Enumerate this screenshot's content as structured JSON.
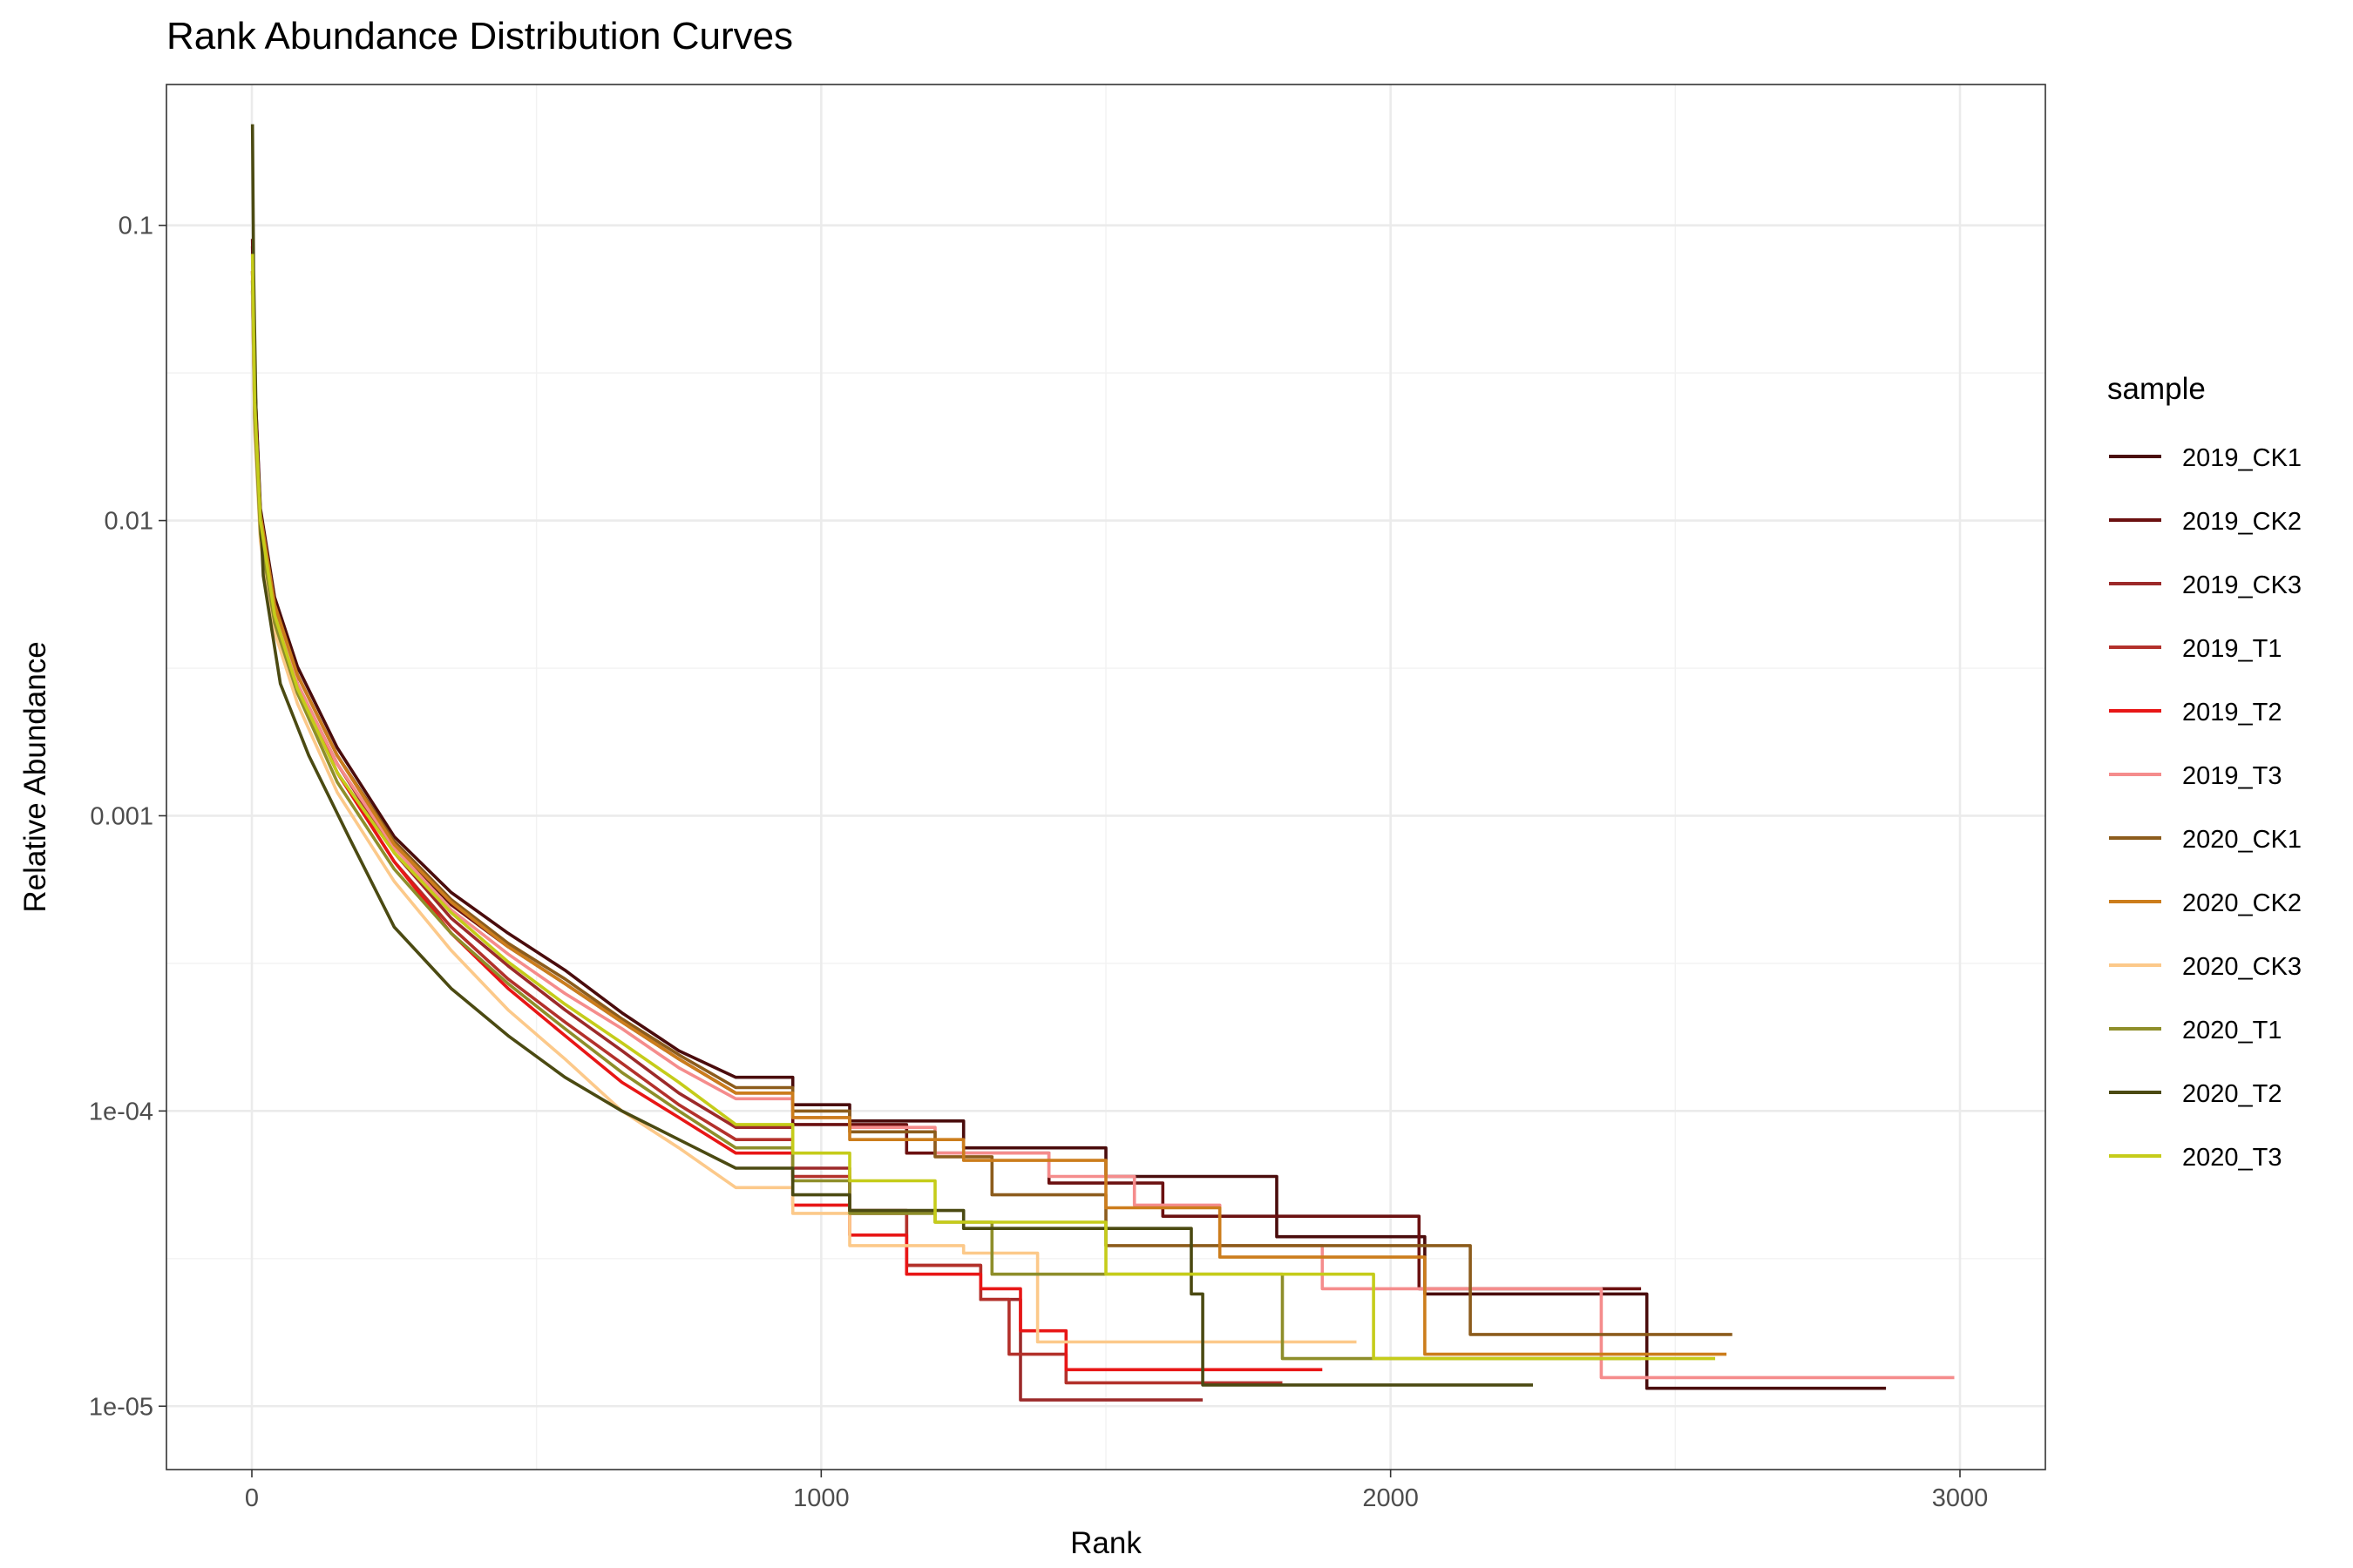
{
  "chart_data": {
    "type": "line",
    "title": "Rank Abundance Distribution Curves",
    "xlabel": "Rank",
    "ylabel": "Relative Abundance",
    "xlim": [
      -150,
      3150
    ],
    "ylim": [
      6.1e-06,
      0.3
    ],
    "x_scale": "linear",
    "y_scale": "log10",
    "x_ticks": [
      0,
      1000,
      2000,
      3000
    ],
    "x_tick_labels": [
      "0",
      "1000",
      "2000",
      "3000"
    ],
    "y_ticks": [
      1e-05,
      0.0001,
      0.001,
      0.01,
      0.1
    ],
    "y_tick_labels": [
      "1e-05",
      "1e-04",
      "0.001",
      "0.01",
      "0.1"
    ],
    "grid": true,
    "legend": {
      "title": "sample",
      "position": "right"
    },
    "series": [
      {
        "name": "2019_CK1",
        "color": "#4a0c0c",
        "points": [
          [
            1,
            0.085
          ],
          [
            5,
            0.03
          ],
          [
            15,
            0.011
          ],
          [
            40,
            0.0055
          ],
          [
            80,
            0.0032
          ],
          [
            150,
            0.0017
          ],
          [
            250,
            0.00085
          ],
          [
            350,
            0.00055
          ],
          [
            450,
            0.0004
          ],
          [
            550,
            0.0003
          ],
          [
            650,
            0.000215
          ],
          [
            750,
            0.00016
          ],
          [
            850,
            0.00013
          ],
          [
            950,
            0.000105
          ],
          [
            1050,
            9.25e-05
          ],
          [
            1250,
            7.5e-05
          ],
          [
            1500,
            6e-05
          ],
          [
            1800,
            3.75e-05
          ],
          [
            2060,
            2.4e-05
          ],
          [
            2450,
            1.15e-05
          ],
          [
            2870,
            1.15e-05
          ]
        ]
      },
      {
        "name": "2019_CK2",
        "color": "#6b1010",
        "points": [
          [
            1,
            0.09
          ],
          [
            5,
            0.03
          ],
          [
            15,
            0.0105
          ],
          [
            40,
            0.0052
          ],
          [
            80,
            0.003
          ],
          [
            150,
            0.0016
          ],
          [
            250,
            0.0008
          ],
          [
            350,
            0.0005
          ],
          [
            450,
            0.00036
          ],
          [
            550,
            0.00027
          ],
          [
            650,
            0.0002
          ],
          [
            750,
            0.00015
          ],
          [
            850,
            0.000115
          ],
          [
            950,
            9e-05
          ],
          [
            1150,
            7.2e-05
          ],
          [
            1400,
            5.7e-05
          ],
          [
            1600,
            4.4e-05
          ],
          [
            1800,
            4.4e-05
          ],
          [
            2050,
            2.5e-05
          ],
          [
            2440,
            2.5e-05
          ]
        ]
      },
      {
        "name": "2019_CK3",
        "color": "#9c2a2a",
        "points": [
          [
            1,
            0.07
          ],
          [
            5,
            0.025
          ],
          [
            15,
            0.01
          ],
          [
            40,
            0.005
          ],
          [
            80,
            0.0028
          ],
          [
            150,
            0.0015
          ],
          [
            250,
            0.00075
          ],
          [
            350,
            0.00045
          ],
          [
            450,
            0.00031
          ],
          [
            550,
            0.00022
          ],
          [
            650,
            0.00016
          ],
          [
            750,
            0.000115
          ],
          [
            850,
            8.8e-05
          ],
          [
            950,
            6.4e-05
          ],
          [
            1050,
            4.6e-05
          ],
          [
            1150,
            3e-05
          ],
          [
            1280,
            2.3e-05
          ],
          [
            1350,
            1.05e-05
          ],
          [
            1670,
            1.05e-05
          ]
        ]
      },
      {
        "name": "2019_T1",
        "color": "#b3312b",
        "points": [
          [
            1,
            0.06
          ],
          [
            5,
            0.022
          ],
          [
            15,
            0.0095
          ],
          [
            40,
            0.0048
          ],
          [
            80,
            0.0027
          ],
          [
            150,
            0.0014
          ],
          [
            250,
            0.0007
          ],
          [
            350,
            0.00042
          ],
          [
            450,
            0.00028
          ],
          [
            550,
            0.0002
          ],
          [
            650,
            0.000145
          ],
          [
            750,
            0.000105
          ],
          [
            850,
            8e-05
          ],
          [
            950,
            6e-05
          ],
          [
            1050,
            4.5e-05
          ],
          [
            1150,
            3e-05
          ],
          [
            1280,
            2.3e-05
          ],
          [
            1330,
            1.5e-05
          ],
          [
            1430,
            1.2e-05
          ],
          [
            1810,
            1.2e-05
          ]
        ]
      },
      {
        "name": "2019_T2",
        "color": "#e81616",
        "points": [
          [
            1,
            0.065
          ],
          [
            5,
            0.022
          ],
          [
            15,
            0.0095
          ],
          [
            40,
            0.0048
          ],
          [
            80,
            0.0028
          ],
          [
            150,
            0.0014
          ],
          [
            250,
            0.0007
          ],
          [
            350,
            0.0004
          ],
          [
            450,
            0.00026
          ],
          [
            550,
            0.00018
          ],
          [
            650,
            0.000125
          ],
          [
            750,
            9.5e-05
          ],
          [
            850,
            7.2e-05
          ],
          [
            950,
            4.8e-05
          ],
          [
            1050,
            3.8e-05
          ],
          [
            1150,
            2.8e-05
          ],
          [
            1280,
            2.5e-05
          ],
          [
            1350,
            1.8e-05
          ],
          [
            1430,
            1.33e-05
          ],
          [
            1880,
            1.33e-05
          ]
        ]
      },
      {
        "name": "2019_T3",
        "color": "#f58c8c",
        "points": [
          [
            1,
            0.06
          ],
          [
            5,
            0.022
          ],
          [
            15,
            0.0095
          ],
          [
            40,
            0.0048
          ],
          [
            80,
            0.0028
          ],
          [
            150,
            0.0015
          ],
          [
            250,
            0.00078
          ],
          [
            350,
            0.00048
          ],
          [
            450,
            0.00034
          ],
          [
            550,
            0.00025
          ],
          [
            650,
            0.00019
          ],
          [
            750,
            0.00014
          ],
          [
            850,
            0.00011
          ],
          [
            950,
            9.5e-05
          ],
          [
            1050,
            8.8e-05
          ],
          [
            1200,
            7.2e-05
          ],
          [
            1400,
            6e-05
          ],
          [
            1550,
            4.8e-05
          ],
          [
            1700,
            3.5e-05
          ],
          [
            1880,
            2.5e-05
          ],
          [
            2370,
            1.25e-05
          ],
          [
            2990,
            1.25e-05
          ]
        ]
      },
      {
        "name": "2020_CK1",
        "color": "#8c5c1c",
        "points": [
          [
            1,
            0.07
          ],
          [
            5,
            0.025
          ],
          [
            15,
            0.0105
          ],
          [
            40,
            0.0052
          ],
          [
            80,
            0.003
          ],
          [
            150,
            0.0016
          ],
          [
            250,
            0.00082
          ],
          [
            350,
            0.00052
          ],
          [
            450,
            0.00037
          ],
          [
            550,
            0.00028
          ],
          [
            650,
            0.000205
          ],
          [
            750,
            0.000155
          ],
          [
            850,
            0.00012
          ],
          [
            950,
            0.0001
          ],
          [
            1050,
            8.5e-05
          ],
          [
            1200,
            7e-05
          ],
          [
            1300,
            5.2e-05
          ],
          [
            1500,
            3.5e-05
          ],
          [
            2130,
            3.5e-05
          ],
          [
            2140,
            1.75e-05
          ],
          [
            2600,
            1.75e-05
          ]
        ]
      },
      {
        "name": "2020_CK2",
        "color": "#cc7d1c",
        "points": [
          [
            1,
            0.07
          ],
          [
            5,
            0.025
          ],
          [
            15,
            0.0105
          ],
          [
            40,
            0.0052
          ],
          [
            80,
            0.003
          ],
          [
            150,
            0.0016
          ],
          [
            250,
            0.0008
          ],
          [
            350,
            0.00051
          ],
          [
            450,
            0.00036
          ],
          [
            550,
            0.00027
          ],
          [
            650,
            0.0002
          ],
          [
            750,
            0.00015
          ],
          [
            850,
            0.000115
          ],
          [
            950,
            9.5e-05
          ],
          [
            1050,
            8e-05
          ],
          [
            1250,
            6.8e-05
          ],
          [
            1500,
            4.7e-05
          ],
          [
            1700,
            3.2e-05
          ],
          [
            2050,
            3.2e-05
          ],
          [
            2060,
            1.5e-05
          ],
          [
            2590,
            1.5e-05
          ]
        ]
      },
      {
        "name": "2020_CK3",
        "color": "#fcc98a",
        "points": [
          [
            1,
            0.06
          ],
          [
            5,
            0.02
          ],
          [
            15,
            0.0085
          ],
          [
            40,
            0.0042
          ],
          [
            80,
            0.0024
          ],
          [
            150,
            0.0012
          ],
          [
            250,
            0.0006
          ],
          [
            350,
            0.00035
          ],
          [
            450,
            0.00022
          ],
          [
            550,
            0.00015
          ],
          [
            650,
            0.0001
          ],
          [
            750,
            7.5e-05
          ],
          [
            850,
            5.5e-05
          ],
          [
            950,
            4.5e-05
          ],
          [
            1050,
            3.5e-05
          ],
          [
            1250,
            3.3e-05
          ],
          [
            1380,
            1.65e-05
          ],
          [
            1940,
            1.65e-05
          ]
        ]
      },
      {
        "name": "2020_T1",
        "color": "#8e8e2a",
        "points": [
          [
            1,
            0.065
          ],
          [
            5,
            0.022
          ],
          [
            15,
            0.009
          ],
          [
            40,
            0.0045
          ],
          [
            80,
            0.0026
          ],
          [
            150,
            0.0013
          ],
          [
            250,
            0.00066
          ],
          [
            350,
            0.0004
          ],
          [
            450,
            0.00027
          ],
          [
            550,
            0.00019
          ],
          [
            650,
            0.000135
          ],
          [
            750,
            0.0001
          ],
          [
            850,
            7.5e-05
          ],
          [
            950,
            5.8e-05
          ],
          [
            1050,
            4.5e-05
          ],
          [
            1200,
            4.2e-05
          ],
          [
            1300,
            2.8e-05
          ],
          [
            1800,
            2.8e-05
          ],
          [
            1810,
            1.45e-05
          ],
          [
            2440,
            1.45e-05
          ]
        ]
      },
      {
        "name": "2020_T2",
        "color": "#4b4a12",
        "points": [
          [
            1,
            0.22
          ],
          [
            3,
            0.07
          ],
          [
            8,
            0.02
          ],
          [
            20,
            0.0065
          ],
          [
            50,
            0.0028
          ],
          [
            100,
            0.0016
          ],
          [
            170,
            0.00085
          ],
          [
            250,
            0.00042
          ],
          [
            350,
            0.00026
          ],
          [
            450,
            0.00018
          ],
          [
            550,
            0.00013
          ],
          [
            650,
            0.0001
          ],
          [
            750,
            8e-05
          ],
          [
            850,
            6.4e-05
          ],
          [
            950,
            5.2e-05
          ],
          [
            1050,
            4.6e-05
          ],
          [
            1250,
            4e-05
          ],
          [
            1650,
            2.4e-05
          ],
          [
            1670,
            1.18e-05
          ],
          [
            2250,
            1.18e-05
          ]
        ]
      },
      {
        "name": "2020_T3",
        "color": "#c5cc1a",
        "points": [
          [
            1,
            0.08
          ],
          [
            5,
            0.025
          ],
          [
            15,
            0.01
          ],
          [
            40,
            0.0048
          ],
          [
            80,
            0.0027
          ],
          [
            150,
            0.0014
          ],
          [
            250,
            0.00075
          ],
          [
            350,
            0.00047
          ],
          [
            450,
            0.00032
          ],
          [
            550,
            0.00023
          ],
          [
            650,
            0.00017
          ],
          [
            750,
            0.000125
          ],
          [
            850,
            9e-05
          ],
          [
            950,
            7.2e-05
          ],
          [
            1050,
            5.8e-05
          ],
          [
            1200,
            4.2e-05
          ],
          [
            1500,
            2.8e-05
          ],
          [
            1960,
            2.8e-05
          ],
          [
            1970,
            1.45e-05
          ],
          [
            2570,
            1.45e-05
          ]
        ]
      }
    ]
  }
}
